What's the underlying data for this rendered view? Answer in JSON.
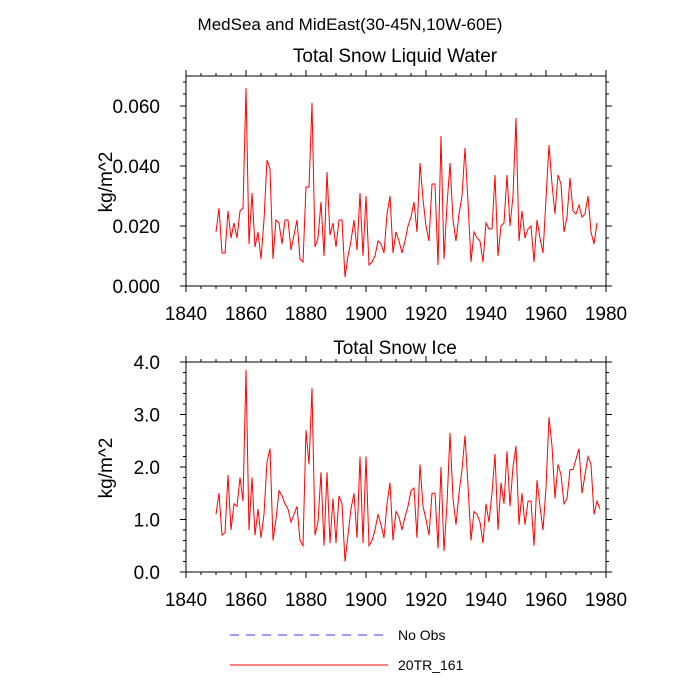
{
  "figure_title": "MedSea and MidEast(30-45N,10W-60E)",
  "legend": [
    {
      "label": "No Obs",
      "color": "#3a3aff",
      "style": "dashed"
    },
    {
      "label": "20TR_161",
      "color": "#ff0000",
      "style": "solid"
    }
  ],
  "chart_data": [
    {
      "type": "line",
      "title": "Total Snow Liquid Water",
      "xlabel": "",
      "ylabel": "kg/m^2",
      "xlim": [
        1840,
        1980
      ],
      "ylim": [
        0.0,
        0.07
      ],
      "xticks": [
        1840,
        1860,
        1880,
        1900,
        1920,
        1940,
        1960,
        1980
      ],
      "xtick_labels": [
        "1840",
        "1860",
        "1880",
        "1900",
        "1920",
        "1940",
        "1960",
        "1980"
      ],
      "yticks": [
        0.0,
        0.02,
        0.04,
        0.06
      ],
      "ytick_labels": [
        "0.000",
        "0.020",
        "0.040",
        "0.060"
      ],
      "series": [
        {
          "name": "20TR_161",
          "x_start": 1850,
          "x_step": 1,
          "values": [
            0.018,
            0.026,
            0.011,
            0.011,
            0.025,
            0.016,
            0.021,
            0.016,
            0.025,
            0.026,
            0.066,
            0.014,
            0.031,
            0.013,
            0.018,
            0.009,
            0.022,
            0.042,
            0.039,
            0.009,
            0.022,
            0.021,
            0.014,
            0.022,
            0.022,
            0.012,
            0.017,
            0.022,
            0.009,
            0.008,
            0.033,
            0.033,
            0.061,
            0.013,
            0.016,
            0.028,
            0.01,
            0.038,
            0.017,
            0.021,
            0.013,
            0.022,
            0.022,
            0.003,
            0.01,
            0.015,
            0.022,
            0.012,
            0.031,
            0.01,
            0.03,
            0.007,
            0.008,
            0.01,
            0.015,
            0.014,
            0.011,
            0.024,
            0.03,
            0.011,
            0.018,
            0.015,
            0.011,
            0.015,
            0.02,
            0.023,
            0.028,
            0.018,
            0.041,
            0.029,
            0.02,
            0.015,
            0.034,
            0.034,
            0.007,
            0.05,
            0.009,
            0.027,
            0.041,
            0.022,
            0.015,
            0.024,
            0.03,
            0.046,
            0.028,
            0.008,
            0.018,
            0.016,
            0.015,
            0.008,
            0.021,
            0.019,
            0.019,
            0.037,
            0.01,
            0.02,
            0.021,
            0.037,
            0.02,
            0.03,
            0.056,
            0.015,
            0.025,
            0.016,
            0.019,
            0.02,
            0.008,
            0.022,
            0.016,
            0.011,
            0.029,
            0.047,
            0.034,
            0.024,
            0.037,
            0.034,
            0.018,
            0.023,
            0.036,
            0.025,
            0.024,
            0.027,
            0.023,
            0.024,
            0.03,
            0.018,
            0.014,
            0.021
          ]
        }
      ]
    },
    {
      "type": "line",
      "title": "Total Snow Ice",
      "xlabel": "",
      "ylabel": "kg/m^2",
      "xlim": [
        1840,
        1980
      ],
      "ylim": [
        0.0,
        4.0
      ],
      "xticks": [
        1840,
        1860,
        1880,
        1900,
        1920,
        1940,
        1960,
        1980
      ],
      "xtick_labels": [
        "1840",
        "1860",
        "1880",
        "1900",
        "1920",
        "1940",
        "1960",
        "1980"
      ],
      "yticks": [
        0.0,
        1.0,
        2.0,
        3.0,
        4.0
      ],
      "ytick_labels": [
        "0.0",
        "1.0",
        "2.0",
        "3.0",
        "4.0"
      ],
      "series": [
        {
          "name": "20TR_161",
          "x_start": 1850,
          "x_step": 1,
          "values": [
            1.1,
            1.5,
            0.7,
            0.75,
            1.85,
            0.8,
            1.3,
            1.25,
            1.8,
            1.35,
            3.85,
            0.8,
            1.8,
            0.7,
            1.2,
            0.65,
            1.1,
            2.1,
            2.35,
            0.6,
            1.0,
            1.55,
            1.45,
            1.3,
            1.2,
            0.95,
            1.1,
            1.25,
            0.6,
            0.5,
            2.7,
            2.05,
            3.5,
            0.7,
            0.95,
            1.9,
            0.5,
            1.9,
            0.55,
            1.4,
            0.55,
            1.45,
            1.3,
            0.2,
            0.7,
            1.2,
            1.5,
            0.65,
            2.2,
            0.55,
            2.2,
            0.5,
            0.6,
            0.8,
            1.1,
            0.9,
            0.65,
            1.3,
            1.7,
            0.6,
            1.15,
            1.05,
            0.8,
            1.05,
            1.25,
            1.55,
            1.6,
            0.65,
            2.05,
            1.25,
            1.0,
            0.7,
            1.5,
            1.5,
            0.45,
            2.0,
            0.4,
            1.3,
            2.65,
            1.4,
            0.9,
            1.5,
            1.95,
            2.6,
            1.65,
            0.6,
            1.15,
            1.1,
            0.95,
            0.55,
            1.3,
            0.95,
            1.5,
            2.25,
            0.8,
            1.7,
            1.3,
            2.3,
            1.25,
            2.0,
            2.4,
            0.9,
            1.5,
            0.9,
            1.35,
            1.35,
            0.5,
            1.75,
            1.25,
            0.8,
            1.6,
            2.95,
            2.4,
            1.4,
            2.05,
            1.85,
            1.3,
            1.4,
            1.95,
            1.95,
            2.15,
            2.35,
            1.5,
            1.85,
            2.2,
            2.05,
            1.1,
            1.35,
            1.2
          ]
        }
      ]
    }
  ]
}
